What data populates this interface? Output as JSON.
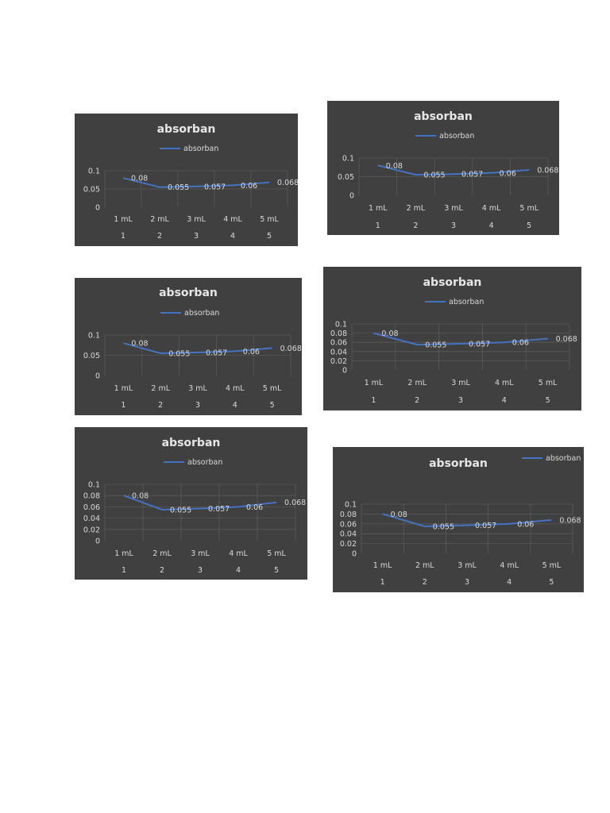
{
  "chart_data": [
    {
      "type": "line",
      "title": "absorban",
      "categories": [
        "1 mL",
        "2 mL",
        "3 mL",
        "4 mL",
        "5 mL"
      ],
      "category_index": [
        "1",
        "2",
        "3",
        "4",
        "5"
      ],
      "series": [
        {
          "name": "absorban",
          "values": [
            0.08,
            0.055,
            0.057,
            0.06,
            0.068
          ]
        }
      ],
      "data_labels": [
        "0.08",
        "0.055",
        "0.057",
        "0.06",
        "0.068"
      ],
      "yticks": [
        "0",
        "0.05",
        "0.1"
      ],
      "ylim": [
        0,
        0.1
      ],
      "legend": "top",
      "grid": true,
      "background": "#404040",
      "series_color": "#4472c4"
    },
    {
      "type": "line",
      "title": "absorban",
      "categories": [
        "1 mL",
        "2 mL",
        "3 mL",
        "4 mL",
        "5 mL"
      ],
      "category_index": [
        "1",
        "2",
        "3",
        "4",
        "5"
      ],
      "series": [
        {
          "name": "absorban",
          "values": [
            0.08,
            0.055,
            0.057,
            0.06,
            0.068
          ]
        }
      ],
      "data_labels": [
        "0.08",
        "0.055",
        "0.057",
        "0.06",
        "0.068"
      ],
      "yticks": [
        "0",
        "0.05",
        "0.1"
      ],
      "ylim": [
        0,
        0.1
      ],
      "legend": "top",
      "grid": true,
      "background": "#404040",
      "series_color": "#4472c4"
    },
    {
      "type": "line",
      "title": "absorban",
      "categories": [
        "1 mL",
        "2 mL",
        "3 mL",
        "4 mL",
        "5 mL"
      ],
      "category_index": [
        "1",
        "2",
        "3",
        "4",
        "5"
      ],
      "series": [
        {
          "name": "absorban",
          "values": [
            0.08,
            0.055,
            0.057,
            0.06,
            0.068
          ]
        }
      ],
      "data_labels": [
        "0.08",
        "0.055",
        "0.057",
        "0.06",
        "0.068"
      ],
      "yticks": [
        "0",
        "0.05",
        "0.1"
      ],
      "ylim": [
        0,
        0.1
      ],
      "legend": "top",
      "grid": true,
      "background": "#404040",
      "series_color": "#4472c4"
    },
    {
      "type": "line",
      "title": "absorban",
      "categories": [
        "1 mL",
        "2 mL",
        "3 mL",
        "4 mL",
        "5 mL"
      ],
      "category_index": [
        "1",
        "2",
        "3",
        "4",
        "5"
      ],
      "series": [
        {
          "name": "absorban",
          "values": [
            0.08,
            0.055,
            0.057,
            0.06,
            0.068
          ]
        }
      ],
      "data_labels": [
        "0.08",
        "0.055",
        "0.057",
        "0.06",
        "0.068"
      ],
      "yticks": [
        "0",
        "0.02",
        "0.04",
        "0.06",
        "0.08",
        "0.1"
      ],
      "ylim": [
        0,
        0.1
      ],
      "legend": "top",
      "grid": true,
      "background": "#404040",
      "series_color": "#4472c4"
    },
    {
      "type": "line",
      "title": "absorban",
      "categories": [
        "1 mL",
        "2 mL",
        "3 mL",
        "4 mL",
        "5 mL"
      ],
      "category_index": [
        "1",
        "2",
        "3",
        "4",
        "5"
      ],
      "series": [
        {
          "name": "absorban",
          "values": [
            0.08,
            0.055,
            0.057,
            0.06,
            0.068
          ]
        }
      ],
      "data_labels": [
        "0.08",
        "0.055",
        "0.057",
        "0.06",
        "0.068"
      ],
      "yticks": [
        "0",
        "0.02",
        "0.04",
        "0.06",
        "0.08",
        "0.1"
      ],
      "ylim": [
        0,
        0.1
      ],
      "legend": "top",
      "grid": true,
      "background": "#404040",
      "series_color": "#4472c4"
    },
    {
      "type": "line",
      "title": "absorban",
      "categories": [
        "1 mL",
        "2 mL",
        "3 mL",
        "4 mL",
        "5 mL"
      ],
      "category_index": [
        "1",
        "2",
        "3",
        "4",
        "5"
      ],
      "series": [
        {
          "name": "absorban",
          "values": [
            0.08,
            0.055,
            0.057,
            0.06,
            0.068
          ]
        }
      ],
      "data_labels": [
        "0.08",
        "0.055",
        "0.057",
        "0.06",
        "0.068"
      ],
      "yticks": [
        "0",
        "0.02",
        "0.04",
        "0.06",
        "0.08",
        "0.1"
      ],
      "ylim": [
        0,
        0.1
      ],
      "legend": "top-right",
      "grid": true,
      "background": "#404040",
      "series_color": "#4472c4"
    }
  ]
}
